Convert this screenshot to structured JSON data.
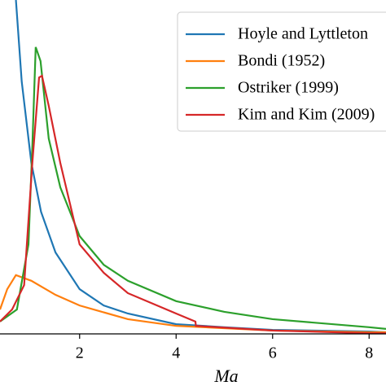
{
  "chart_data": {
    "type": "line",
    "xlabel": "Ma",
    "xlim": [
      0.35,
      8.35
    ],
    "xticks": [
      2,
      4,
      6,
      8
    ],
    "ylim": [
      0,
      1
    ],
    "legend": "upper right",
    "series": [
      {
        "name": "Hoyle and Lyttleton",
        "color": "#1f77b4",
        "x": [
          0.68,
          0.8,
          1,
          1.2,
          1.5,
          2,
          2.5,
          3,
          4,
          5,
          6,
          8,
          8.35
        ],
        "values": [
          1.0,
          0.756,
          0.512,
          0.366,
          0.244,
          0.134,
          0.085,
          0.061,
          0.029,
          0.02,
          0.012,
          0.007,
          0.005
        ]
      },
      {
        "name": "Bondi (1952)",
        "color": "#ff7f0e",
        "x": [
          0.35,
          0.5,
          0.68,
          1,
          1.5,
          2,
          3,
          4,
          6,
          8,
          8.35
        ],
        "values": [
          0.073,
          0.134,
          0.176,
          0.159,
          0.117,
          0.085,
          0.044,
          0.024,
          0.01,
          0.005,
          0.005
        ]
      },
      {
        "name": "Ostriker (1999)",
        "color": "#2ca02c",
        "x": [
          0.35,
          0.7,
          0.94,
          1.02,
          1.09,
          1.19,
          1.36,
          1.6,
          2,
          2.5,
          3,
          4,
          5,
          6,
          8,
          8.35
        ],
        "values": [
          0.037,
          0.073,
          0.268,
          0.561,
          0.859,
          0.817,
          0.585,
          0.439,
          0.293,
          0.207,
          0.159,
          0.098,
          0.066,
          0.044,
          0.02,
          0.015
        ]
      },
      {
        "name": "Kim and Kim (2009)",
        "color": "#d62728",
        "x": [
          0.35,
          0.6,
          0.85,
          1.02,
          1.16,
          1.22,
          1.36,
          1.6,
          2,
          2.5,
          3,
          4,
          4.4,
          4.41,
          6,
          8,
          8.35
        ],
        "values": [
          0.037,
          0.073,
          0.146,
          0.512,
          0.768,
          0.773,
          0.683,
          0.512,
          0.268,
          0.183,
          0.122,
          0.061,
          0.037,
          0.024,
          0.01,
          0.002,
          0.002
        ]
      }
    ]
  }
}
